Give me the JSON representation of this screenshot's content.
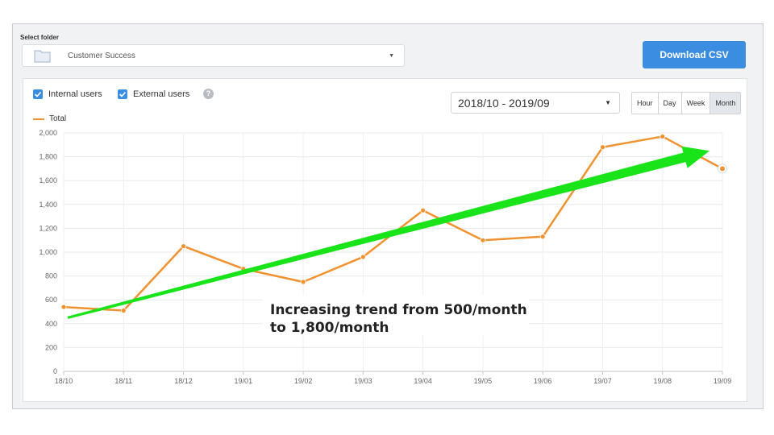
{
  "header": {
    "select_label": "Select folder",
    "folder_name": "Customer Success",
    "download_label": "Download CSV"
  },
  "filters": {
    "internal_label": "Internal users",
    "external_label": "External users",
    "help": "?"
  },
  "date_range": "2018/10 - 2019/09",
  "granularity": [
    "Hour",
    "Day",
    "Week",
    "Month"
  ],
  "granularity_selected": "Month",
  "colors": {
    "line": "#f0922f",
    "arrow": "#19e41a",
    "accent": "#3a8de0"
  },
  "annotation": {
    "line1": "Increasing trend from 500/month",
    "line2": "to 1,800/month"
  },
  "chart_data": {
    "type": "line",
    "categories": [
      "18/10",
      "18/11",
      "18/12",
      "19/01",
      "19/02",
      "19/03",
      "19/04",
      "19/05",
      "19/06",
      "19/07",
      "19/08",
      "19/09"
    ],
    "series": [
      {
        "name": "Total",
        "values": [
          540,
          510,
          1050,
          860,
          750,
          960,
          1350,
          1100,
          1130,
          1880,
          1970,
          1700
        ]
      }
    ],
    "y_ticks": [
      "0",
      "200",
      "400",
      "600",
      "800",
      "1,000",
      "1,200",
      "1,400",
      "1,600",
      "1,800",
      "2,000"
    ],
    "ylim": [
      0,
      2000
    ],
    "grid": true,
    "legend": "top-left",
    "trend_arrow": {
      "from": 450,
      "to": 1850
    }
  }
}
